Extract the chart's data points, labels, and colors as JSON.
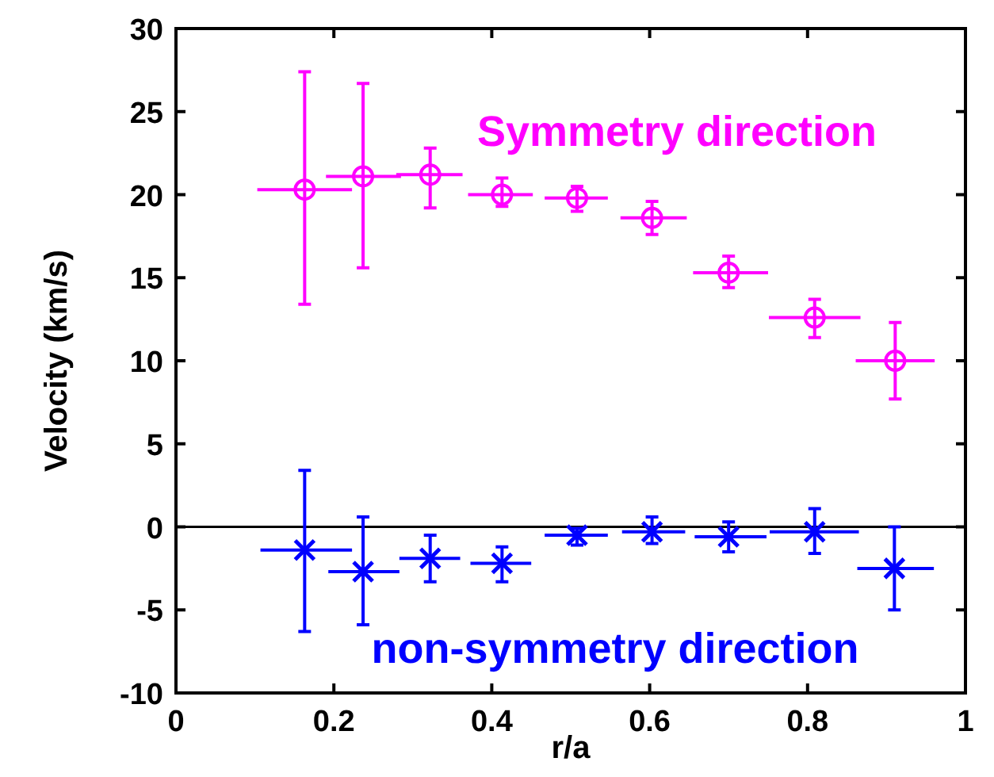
{
  "chart_data": {
    "type": "scatter",
    "xlabel": "r/a",
    "ylabel": "Velocity (km/s)",
    "xlim": [
      0,
      1
    ],
    "xticks": [
      0,
      0.2,
      0.4,
      0.6,
      0.8,
      1
    ],
    "ylim": [
      -10,
      30
    ],
    "yticks": [
      -10,
      -5,
      0,
      5,
      10,
      15,
      20,
      25,
      30
    ],
    "grid": false,
    "legend": false,
    "ref_lines": [
      {
        "axis": "y",
        "value": 0,
        "color": "#000000"
      }
    ],
    "series": [
      {
        "name": "Symmetry direction",
        "color": "#ff00ff",
        "marker": "circle",
        "x": [
          0.163,
          0.237,
          0.322,
          0.413,
          0.508,
          0.603,
          0.7,
          0.809,
          0.911
        ],
        "values": [
          20.3,
          21.1,
          21.2,
          20.0,
          19.8,
          18.6,
          15.3,
          12.6,
          10.0
        ],
        "errors": [
          [
            13.4,
            27.4
          ],
          [
            15.6,
            26.7
          ],
          [
            19.2,
            22.8
          ],
          [
            19.3,
            21.0
          ],
          [
            19.0,
            20.5
          ],
          [
            17.6,
            19.6
          ],
          [
            14.4,
            16.3
          ],
          [
            11.4,
            13.7
          ],
          [
            7.7,
            12.3
          ]
        ],
        "xerrors": [
          [
            0.103,
            0.223
          ],
          [
            0.19,
            0.285
          ],
          [
            0.279,
            0.363
          ],
          [
            0.37,
            0.452
          ],
          [
            0.467,
            0.547
          ],
          [
            0.563,
            0.647
          ],
          [
            0.655,
            0.75
          ],
          [
            0.751,
            0.867
          ],
          [
            0.861,
            0.961
          ]
        ]
      },
      {
        "name": "non-symmetry direction",
        "color": "#0000ff",
        "marker": "cross",
        "x": [
          0.163,
          0.237,
          0.322,
          0.413,
          0.508,
          0.603,
          0.7,
          0.809,
          0.91
        ],
        "values": [
          -1.4,
          -2.7,
          -1.9,
          -2.2,
          -0.5,
          -0.3,
          -0.6,
          -0.3,
          -2.5
        ],
        "errors": [
          [
            -6.3,
            3.4
          ],
          [
            -5.9,
            0.6
          ],
          [
            -3.3,
            -0.5
          ],
          [
            -3.3,
            -1.2
          ],
          [
            -1.1,
            -0.1
          ],
          [
            -1.0,
            0.6
          ],
          [
            -1.5,
            0.3
          ],
          [
            -1.6,
            1.1
          ],
          [
            -5.0,
            0.0
          ]
        ],
        "xerrors": [
          [
            0.107,
            0.223
          ],
          [
            0.193,
            0.283
          ],
          [
            0.283,
            0.36
          ],
          [
            0.373,
            0.45
          ],
          [
            0.467,
            0.547
          ],
          [
            0.565,
            0.645
          ],
          [
            0.657,
            0.748
          ],
          [
            0.752,
            0.865
          ],
          [
            0.863,
            0.96
          ]
        ]
      }
    ]
  }
}
